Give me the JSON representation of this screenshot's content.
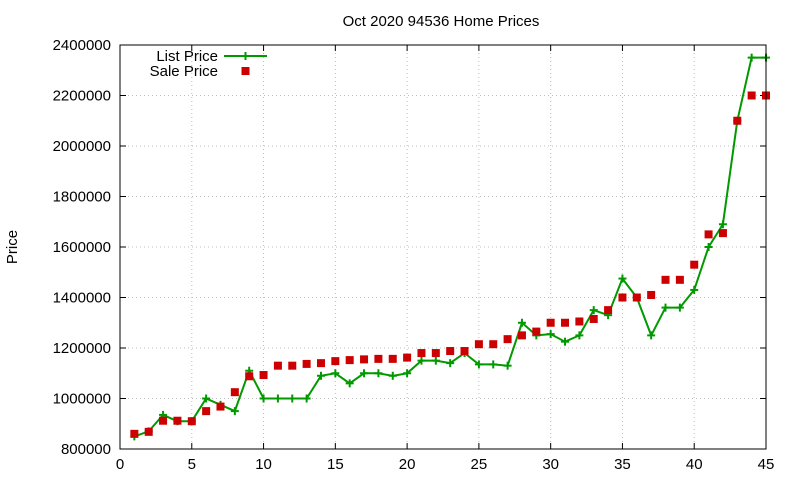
{
  "chart_data": {
    "type": "line",
    "title": "Oct 2020 94536 Home Prices",
    "xlabel": "",
    "ylabel": "Price",
    "xlim": [
      0,
      45
    ],
    "ylim": [
      800000,
      2400000
    ],
    "xticks": [
      0,
      5,
      10,
      15,
      20,
      25,
      30,
      35,
      40,
      45
    ],
    "yticks": [
      800000,
      1000000,
      1200000,
      1400000,
      1600000,
      1800000,
      2000000,
      2200000,
      2400000
    ],
    "grid": true,
    "legend_position": "top-left",
    "x": [
      1,
      2,
      3,
      4,
      5,
      6,
      7,
      8,
      9,
      10,
      11,
      12,
      13,
      14,
      15,
      16,
      17,
      18,
      19,
      20,
      21,
      22,
      23,
      24,
      25,
      26,
      27,
      28,
      29,
      30,
      31,
      32,
      33,
      34,
      35,
      36,
      37,
      38,
      39,
      40,
      41,
      42,
      43,
      44,
      45
    ],
    "series": [
      {
        "name": "List Price",
        "style": "linespoints",
        "color": "#009900",
        "marker": "plus",
        "values": [
          850000,
          870000,
          935000,
          910000,
          910000,
          1000000,
          975000,
          950000,
          1110000,
          1000000,
          1000000,
          1000000,
          1000000,
          1090000,
          1100000,
          1060000,
          1100000,
          1100000,
          1090000,
          1100000,
          1150000,
          1150000,
          1140000,
          1180000,
          1135000,
          1135000,
          1130000,
          1300000,
          1250000,
          1255000,
          1225000,
          1250000,
          1350000,
          1330000,
          1475000,
          1400000,
          1250000,
          1360000,
          1360000,
          1430000,
          1600000,
          1690000,
          2100000,
          2350000,
          2350000
        ]
      },
      {
        "name": "Sale Price",
        "style": "points",
        "color": "#cc0000",
        "marker": "square",
        "values": [
          860000,
          868000,
          912000,
          912000,
          910000,
          950000,
          968000,
          1025000,
          1088000,
          1093000,
          1130000,
          1130000,
          1137000,
          1140000,
          1148000,
          1152000,
          1155000,
          1157000,
          1157000,
          1162000,
          1180000,
          1180000,
          1188000,
          1188000,
          1215000,
          1215000,
          1235000,
          1250000,
          1265000,
          1300000,
          1300000,
          1305000,
          1315000,
          1350000,
          1400000,
          1400000,
          1410000,
          1470000,
          1470000,
          1530000,
          1650000,
          1655000,
          2100000,
          2200000,
          2200000
        ]
      }
    ]
  }
}
